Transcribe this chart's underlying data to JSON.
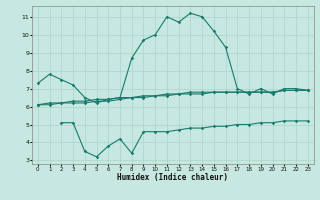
{
  "xlabel": "Humidex (Indice chaleur)",
  "ylabel": "",
  "bg_color": "#c6e8e0",
  "line_color": "#1a7a6e",
  "grid_color": "#aad4cc",
  "xlim": [
    -0.5,
    23.5
  ],
  "ylim": [
    2.8,
    11.6
  ],
  "yticks": [
    3,
    4,
    5,
    6,
    7,
    8,
    9,
    10,
    11
  ],
  "xticks": [
    0,
    1,
    2,
    3,
    4,
    5,
    6,
    7,
    8,
    9,
    10,
    11,
    12,
    13,
    14,
    15,
    16,
    17,
    18,
    19,
    20,
    21,
    22,
    23
  ],
  "line1_x": [
    0,
    1,
    2,
    3,
    4,
    5,
    6,
    7,
    8,
    9,
    10,
    11,
    12,
    13,
    14,
    15,
    16,
    17,
    18,
    19,
    20,
    21,
    22,
    23
  ],
  "line1_y": [
    7.3,
    7.8,
    7.5,
    7.2,
    6.5,
    6.2,
    6.4,
    6.5,
    8.7,
    9.7,
    10.0,
    11.0,
    10.7,
    11.2,
    11.0,
    10.2,
    9.3,
    7.0,
    6.7,
    7.0,
    6.7,
    7.0,
    7.0,
    6.9
  ],
  "line2_x": [
    0,
    1,
    2,
    3,
    4,
    5,
    6,
    7,
    8,
    9,
    10,
    11,
    12,
    13,
    14,
    15,
    16,
    17,
    18,
    19,
    20,
    21,
    22,
    23
  ],
  "line2_y": [
    6.1,
    6.2,
    6.2,
    6.3,
    6.3,
    6.4,
    6.4,
    6.5,
    6.5,
    6.6,
    6.6,
    6.7,
    6.7,
    6.8,
    6.8,
    6.8,
    6.8,
    6.8,
    6.8,
    6.8,
    6.8,
    6.9,
    6.9,
    6.9
  ],
  "line3_x": [
    0,
    1,
    2,
    3,
    4,
    5,
    6,
    7,
    8,
    9,
    10,
    11,
    12,
    13,
    14,
    15,
    16,
    17,
    18,
    19,
    20,
    21,
    22,
    23
  ],
  "line3_y": [
    6.1,
    6.1,
    6.2,
    6.2,
    6.2,
    6.3,
    6.3,
    6.4,
    6.5,
    6.5,
    6.6,
    6.6,
    6.7,
    6.7,
    6.7,
    6.8,
    6.8,
    6.8,
    6.8,
    6.8,
    6.8,
    6.9,
    6.9,
    6.9
  ],
  "line4_x": [
    2,
    3,
    4,
    5,
    6,
    7,
    8,
    9,
    10,
    11,
    12,
    13,
    14,
    15,
    16,
    17,
    18,
    19,
    20,
    21,
    22,
    23
  ],
  "line4_y": [
    5.1,
    5.1,
    3.5,
    3.2,
    3.8,
    4.2,
    3.4,
    4.6,
    4.6,
    4.6,
    4.7,
    4.8,
    4.8,
    4.9,
    4.9,
    5.0,
    5.0,
    5.1,
    5.1,
    5.2,
    5.2,
    5.2
  ]
}
